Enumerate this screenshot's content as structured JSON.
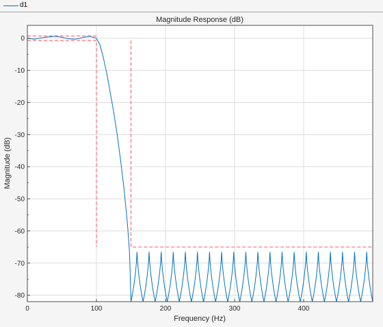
{
  "legend": {
    "entries": [
      "d1"
    ]
  },
  "chart_data": {
    "type": "line",
    "title": "Magnitude Response (dB)",
    "xlabel": "Frequency (Hz)",
    "ylabel": "Magnitude (dB)",
    "xlim": [
      0,
      500
    ],
    "ylim": [
      -82,
      4
    ],
    "xticks": [
      0,
      100,
      200,
      300,
      400
    ],
    "yticks": [
      0,
      -10,
      -20,
      -30,
      -40,
      -50,
      -60,
      -70,
      -80
    ],
    "grid": true,
    "legend_position": "top-left",
    "colors": {
      "series": "#0072bd",
      "mask": "#ff6b78"
    },
    "series": [
      {
        "name": "d1",
        "description": "Lowpass magnitude response: ~0 dB passband ripple to 100 Hz, rolloff to ~-82 dB at 150 Hz, equiripple stopband lobes peaking near -66 dB (~20 lobes between 150 and 500 Hz)",
        "passband": {
          "x": [
            0,
            10,
            20,
            30,
            40,
            50,
            60,
            70,
            80,
            90,
            100
          ],
          "y": [
            0,
            -0.3,
            0.1,
            0.4,
            0.6,
            0.3,
            -0.2,
            -0.3,
            0.2,
            0.6,
            0
          ]
        },
        "transition": {
          "x": [
            100,
            105,
            110,
            115,
            120,
            125,
            130,
            135,
            140,
            145,
            148,
            150
          ],
          "y": [
            0,
            -2,
            -6,
            -11,
            -17,
            -23,
            -30,
            -38,
            -47,
            -58,
            -67,
            -82
          ]
        },
        "stopband": {
          "start": 150,
          "end": 500,
          "lobes": 20,
          "peak": -66.5,
          "null": -82
        }
      },
      {
        "name": "mask",
        "style": "dashed",
        "upper_passband": {
          "x": [
            0,
            100
          ],
          "y": [
            0.7,
            0.7
          ]
        },
        "lower_passband": {
          "x": [
            0,
            100,
            100
          ],
          "y": [
            -0.7,
            -0.7,
            -65
          ]
        },
        "stopband_edge": {
          "x": [
            150,
            150,
            500
          ],
          "y": [
            -0.7,
            -65,
            -65
          ]
        }
      }
    ]
  }
}
